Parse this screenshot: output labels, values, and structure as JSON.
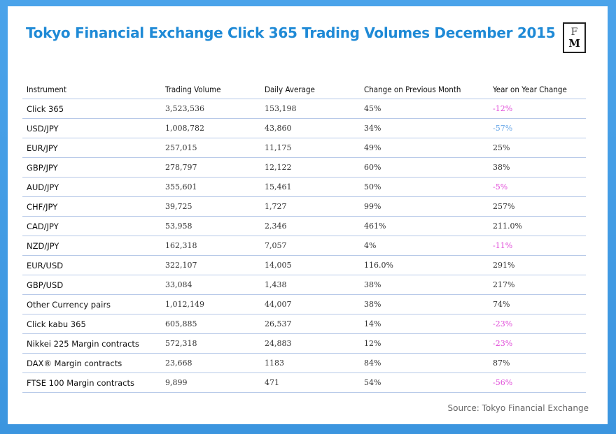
{
  "title": "Tokyo Financial Exchange Click 365 Trading Volumes December 2015",
  "logo": {
    "line1": "F",
    "line2": "M"
  },
  "table": {
    "headers": [
      "Instrument",
      "Trading Volume",
      "Daily Average",
      "Change on Previous Month",
      "Year on Year Change"
    ],
    "rows": [
      {
        "instrument": "Click 365",
        "volume": "3,523,536",
        "daily": "153,198",
        "mom": "45%",
        "yoy": "-12%",
        "yoy_style": "magenta"
      },
      {
        "instrument": "USD/JPY",
        "volume": "1,008,782",
        "daily": "43,860",
        "mom": "34%",
        "yoy": "-57%",
        "yoy_style": "blue"
      },
      {
        "instrument": "EUR/JPY",
        "volume": "257,015",
        "daily": "11,175",
        "mom": "49%",
        "yoy": "25%",
        "yoy_style": "normal"
      },
      {
        "instrument": "GBP/JPY",
        "volume": "278,797",
        "daily": "12,122",
        "mom": "60%",
        "yoy": "38%",
        "yoy_style": "normal"
      },
      {
        "instrument": "AUD/JPY",
        "volume": "355,601",
        "daily": "15,461",
        "mom": "50%",
        "yoy": "-5%",
        "yoy_style": "magenta"
      },
      {
        "instrument": "CHF/JPY",
        "volume": "39,725",
        "daily": "1,727",
        "mom": "99%",
        "yoy": "257%",
        "yoy_style": "normal"
      },
      {
        "instrument": "CAD/JPY",
        "volume": "53,958",
        "daily": "2,346",
        "mom": "461%",
        "yoy": "211.0%",
        "yoy_style": "normal"
      },
      {
        "instrument": "NZD/JPY",
        "volume": "162,318",
        "daily": "7,057",
        "mom": "4%",
        "yoy": "-11%",
        "yoy_style": "magenta"
      },
      {
        "instrument": "EUR/USD",
        "volume": "322,107",
        "daily": "14,005",
        "mom": "116.0%",
        "yoy": "291%",
        "yoy_style": "normal"
      },
      {
        "instrument": "GBP/USD",
        "volume": "33,084",
        "daily": "1,438",
        "mom": "38%",
        "yoy": "217%",
        "yoy_style": "normal"
      },
      {
        "instrument": "Other Currency pairs",
        "volume": "1,012,149",
        "daily": "44,007",
        "mom": "38%",
        "yoy": "74%",
        "yoy_style": "normal"
      },
      {
        "instrument": "Click kabu 365",
        "volume": "605,885",
        "daily": "26,537",
        "mom": "14%",
        "yoy": "-23%",
        "yoy_style": "magenta"
      },
      {
        "instrument": "Nikkei 225 Margin contracts",
        "volume": "572,318",
        "daily": "24,883",
        "mom": "12%",
        "yoy": "-23%",
        "yoy_style": "magenta"
      },
      {
        "instrument": "DAX® Margin contracts",
        "volume": "23,668",
        "daily": "1183",
        "mom": "84%",
        "yoy": "87%",
        "yoy_style": "normal"
      },
      {
        "instrument": "FTSE 100 Margin contracts",
        "volume": "9,899",
        "daily": "471",
        "mom": "54%",
        "yoy": "-56%",
        "yoy_style": "magenta"
      }
    ]
  },
  "source": "Source: Tokyo Financial Exchange",
  "colors": {
    "title": "#1f8ad6",
    "frame": "#4aa3ea",
    "negative_magenta": "#e04ad8",
    "negative_blue": "#6aa8e8",
    "row_divider": "#b7c9e8"
  }
}
